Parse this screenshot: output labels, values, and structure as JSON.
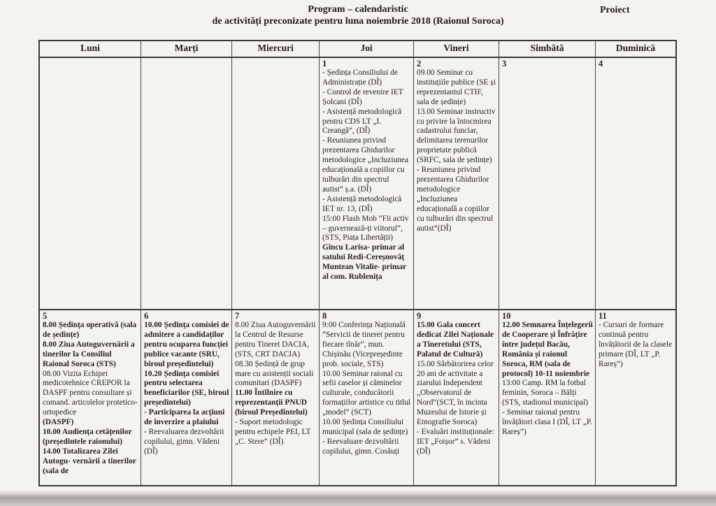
{
  "header": {
    "title_line1": "Program – calendaristic",
    "title_line2": "de activități preconizate pentru luna noiembrie 2018  (Raionul Soroca)",
    "corner_label": "Proiect"
  },
  "table": {
    "headers": [
      "Luni",
      "Marți",
      "Miercuri",
      "Joi",
      "Vineri",
      "Sîmbătă",
      "Duminică"
    ],
    "week1": [
      {},
      {},
      {},
      {
        "day": "1",
        "segments": [
          {
            "text": "- Ședința Consiliului de Administrație (DÎ)",
            "bold": false
          },
          {
            "text": "- Control de revenire IET Șolcani (DÎ)",
            "bold": false
          },
          {
            "text": "- Asistență metodologică pentru CDS LT „I. Creangă”, (DÎ)",
            "bold": false
          },
          {
            "text": "- Reuniunea privind prezentarea Ghidurilor metodologice „Incluziunea educațională a copiilor cu tulburări din spectrul autist” ș.a. (DÎ)",
            "bold": false
          },
          {
            "text": "- Asistență metodologică IET nr. 13, (DÎ)",
            "bold": false
          },
          {
            "text": "15:00 Flash Mob “Fii activ – guvernează-ți viitorul”, (STS, Piața Libertății)",
            "bold": false
          },
          {
            "text": "Gîncu Larisa- primar al satului Redi-Cereșnovăț",
            "bold": true
          },
          {
            "text": "Muntean Vitalie- primar al com. Rublenița",
            "bold": true
          }
        ]
      },
      {
        "day": "2",
        "segments": [
          {
            "text": "09.00 Seminar cu instituțiile publice (SE și reprezentantul CTIF, sala de ședințe)",
            "bold": false
          },
          {
            "text": "13.00 Seminar instructiv cu privire la întocmirea cadastrului funciar, delimitarea terenurilor proprietate publică (SRFC, sala de ședințe)",
            "bold": false
          },
          {
            "text": "- Reuniunea privind prezentarea Ghidurilor metodologice „Incluziunea educațională a copiilor cu tulburări din spectrul autist”(DÎ)",
            "bold": false
          }
        ]
      },
      {
        "day": "3",
        "segments": []
      },
      {
        "day": "4",
        "segments": []
      }
    ],
    "week2": [
      {
        "day": "5",
        "segments": [
          {
            "text": "8.00 Ședința operativă (sala de ședințe)",
            "bold": true
          },
          {
            "text": "8.00 Ziua Autoguvernării a tinerilor la Consiliul Raional Soroca (STS)",
            "bold": true
          },
          {
            "text": "08.00 Vizita Echipei medicotehnice CREPOR la DASPF pentru consultare și comand. articolelor protetico-ortopedice",
            "bold": false
          },
          {
            "text": "(DASPF)",
            "bold": true
          },
          {
            "text": "10.00 Audiența cetățenilor (președintele raionului)",
            "bold": true
          },
          {
            "text": "14.00 Totalizarea Zilei Autogu-  vernării a tinerilor (sala de",
            "bold": true
          }
        ]
      },
      {
        "day": "6",
        "segments": [
          {
            "text": "10.00 Ședința comisiei de admitere a candidaților pentru ocuparea funcției publice vacante (SRU, biroul președintelui)",
            "bold": true
          },
          {
            "text": "10.20 Ședința comisiei pentru selectarea beneficiarilor   (SE, biroul președintelui)",
            "bold": true
          },
          {
            "text": "- Participarea la acțiuni de înverzire a plaiului",
            "bold": true
          },
          {
            "text": "- Reevaluarea dezvoltării copilului, gimn. Vădeni (DÎ)",
            "bold": false
          }
        ]
      },
      {
        "day": "7",
        "segments": [
          {
            "text": "8.00 Ziua Autoguvernării la Centrul de Resurse pentru Tineret DACIA, (STS, CRT DACIA)",
            "bold": false
          },
          {
            "text": "08.30 Ședință de grup mare cu asistenții sociali comunitari (DASPF)",
            "bold": false
          },
          {
            "text": "11.00 Întîlnire cu reprezentanții PNUD (biroul Președintelui)",
            "bold": true
          },
          {
            "text": "- Suport metodologic pentru echipele PEI, LT „C. Stere” (DÎ)",
            "bold": false
          }
        ]
      },
      {
        "day": "8",
        "segments": [
          {
            "text": "9:00 Conferința Națională ”Servicii de tineret pentru fiecare tînăr”, mun. Chișinău (Vicepreședinte prob. sociale, STS)",
            "bold": false
          },
          {
            "text": "10.00 Seminar  raional cu sefii    caselor și căminelor culturale, conducătorii formațiilor artistice cu titlul „model” (SCT)",
            "bold": false
          },
          {
            "text": "10.00 Ședința Consiliului municipal (sala de ședințe)",
            "bold": false
          },
          {
            "text": "- Reevaluare dezvoltării copilului, gimn. Cosăuți",
            "bold": false
          }
        ]
      },
      {
        "day": "9",
        "segments": [
          {
            "text": "15.00 Gala concert dedicat Zilei Naționale a Tineretului (STS, Palatul de Cultură)",
            "bold": true
          },
          {
            "text": "15.00 Sărbătorirea celor 20 ani de activitate a ziarului Independent „Observatorul de Nord”(SCT, în incinta Muzeului de Istorie și Etnografie Soroca)",
            "bold": false
          },
          {
            "text": "- Evaluări instituționale: IET „Foișor” s. Vădeni (DÎ)",
            "bold": false
          }
        ]
      },
      {
        "day": "10",
        "segments": [
          {
            "text": "12.00 Semnarea Înțelegerii de Cooperare și Înfrățire între județul Bacău, România și raionul Soroca, RM (sala de protocol) 10-11 noiembrie",
            "bold": true
          },
          {
            "text": "13:00 Camp. RM la fotbal feminin, Soroca – Bălți (STS, stadionul municipal)",
            "bold": false
          },
          {
            "text": "- Seminar raional pentru învățători clasa I (DÎ, LT „P. Rareș”)",
            "bold": false
          }
        ]
      },
      {
        "day": "11",
        "segments": [
          {
            "text": "- Cursuri de formare continuă pentru învățătorii de la clasele primare (DÎ, LT „P. Rareș”)",
            "bold": false
          }
        ]
      }
    ]
  }
}
